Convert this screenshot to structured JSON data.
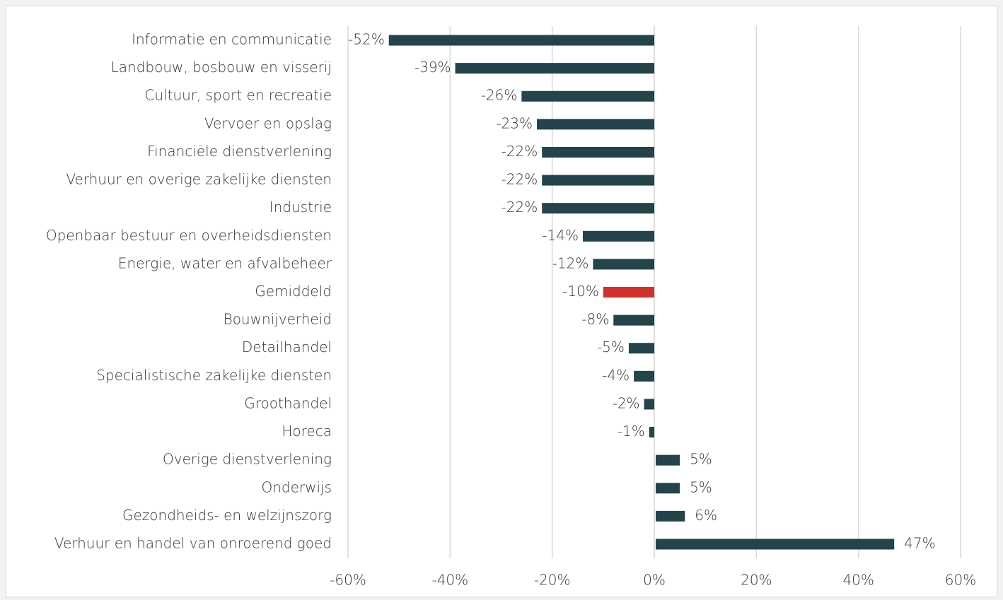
{
  "chart_data": {
    "type": "barh",
    "categories": [
      "Informatie en communicatie",
      "Landbouw, bosbouw en visserij",
      "Cultuur, sport en recreatie",
      "Vervoer en opslag",
      "Financiële dienstverlening",
      "Verhuur en overige zakelijke diensten",
      "Industrie",
      "Openbaar bestuur en overheidsdiensten",
      "Energie, water en afvalbeheer",
      "Gemiddeld",
      "Bouwnijverheid",
      "Detailhandel",
      "Specialistische zakelijke diensten",
      "Groothandel",
      "Horeca",
      "Overige dienstverlening",
      "Onderwijs",
      "Gezondheids- en welzijnszorg",
      "Verhuur en handel van onroerend goed"
    ],
    "values": [
      -52,
      -39,
      -26,
      -23,
      -22,
      -22,
      -22,
      -14,
      -12,
      -10,
      -8,
      -5,
      -4,
      -2,
      -1,
      5,
      5,
      6,
      47
    ],
    "value_labels": [
      "-52%",
      "-39%",
      "-26%",
      "-23%",
      "-22%",
      "-22%",
      "-22%",
      "-14%",
      "-12%",
      "-10%",
      "-8%",
      "-5%",
      "-4%",
      "-2%",
      "-1%",
      "5%",
      "5%",
      "6%",
      "47%"
    ],
    "colors": [
      "#22444a",
      "#22444a",
      "#22444a",
      "#22444a",
      "#22444a",
      "#22444a",
      "#22444a",
      "#22444a",
      "#22444a",
      "#d0312d",
      "#22444a",
      "#22444a",
      "#22444a",
      "#22444a",
      "#22444a",
      "#22444a",
      "#22444a",
      "#22444a",
      "#22444a"
    ],
    "xlim": [
      -60,
      60
    ],
    "xticks": [
      {
        "value": -60,
        "label": "-60%"
      },
      {
        "value": -40,
        "label": "-40%"
      },
      {
        "value": -20,
        "label": "-20%"
      },
      {
        "value": 0,
        "label": "0%"
      },
      {
        "value": 20,
        "label": "20%"
      },
      {
        "value": 40,
        "label": "40%"
      },
      {
        "value": 60,
        "label": "60%"
      }
    ],
    "grid": true
  }
}
